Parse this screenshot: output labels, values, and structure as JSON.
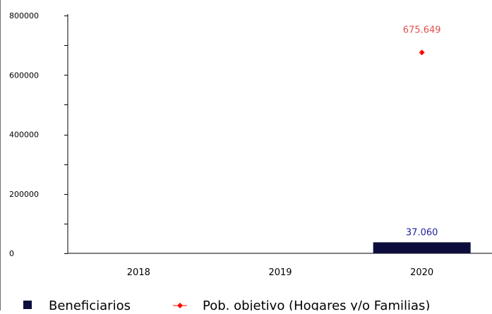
{
  "chart_data": {
    "type": "bar",
    "categories": [
      "2018",
      "2019",
      "2020"
    ],
    "ylim": [
      0,
      800000
    ],
    "y_ticks": [
      "800000",
      "600000",
      "400000",
      "200000",
      "0"
    ],
    "series": [
      {
        "name": "Beneficiarios",
        "kind": "bar",
        "values": [
          null,
          null,
          37060
        ],
        "labels": [
          "",
          "",
          "37.060"
        ],
        "color": "#0d0d3d",
        "label_color": "#1f1f9f"
      },
      {
        "name": "Pob. objetivo (Hogares y/o Familias)",
        "kind": "line",
        "values": [
          null,
          null,
          675649
        ],
        "labels": [
          "",
          "",
          "675.649"
        ],
        "color": "#ff0000",
        "label_color": "#e05050"
      }
    ],
    "grid": false,
    "legend_position": "bottom"
  }
}
